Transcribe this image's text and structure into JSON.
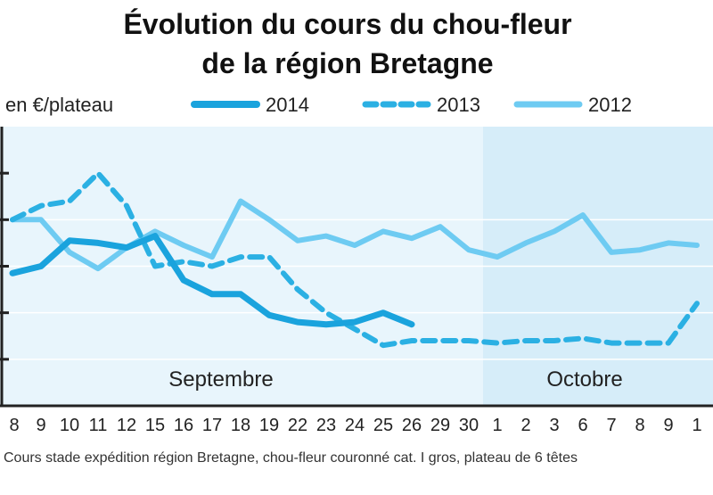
{
  "chart_data": {
    "type": "line",
    "title_line1": "Évolution du cours du chou-fleur",
    "title_line2": "de la région Bretagne",
    "ylabel": "en €/plateau",
    "source": "Cours stade expédition région Bretagne, chou-fleur couronné cat. I gros, plateau de 6 têtes",
    "months": [
      "Septembre",
      "Octobre"
    ],
    "x_ticks": [
      "8",
      "9",
      "10",
      "11",
      "12",
      "15",
      "16",
      "17",
      "18",
      "19",
      "22",
      "23",
      "24",
      "25",
      "26",
      "29",
      "30",
      "1",
      "2",
      "3",
      "6",
      "7",
      "8",
      "9",
      "1"
    ],
    "ylim": [
      0,
      6
    ],
    "y_gridlines": [
      1,
      2,
      3,
      4
    ],
    "october_start_index": 17,
    "series": [
      {
        "name": "2014",
        "style": "solid-thick",
        "color": "#1aa3dd",
        "values": [
          2.85,
          3.0,
          3.55,
          3.5,
          3.4,
          3.65,
          2.7,
          2.4,
          2.4,
          1.95,
          1.8,
          1.75,
          1.8,
          2.0,
          1.75
        ]
      },
      {
        "name": "2013",
        "style": "dashed",
        "color": "#2bb0e3",
        "values": [
          4.0,
          4.3,
          4.4,
          5.0,
          4.3,
          3.0,
          3.1,
          3.0,
          3.2,
          3.2,
          2.5,
          2.0,
          1.65,
          1.3,
          1.4,
          1.4,
          1.4,
          1.35,
          1.4,
          1.4,
          1.45,
          1.35,
          1.35,
          1.35,
          2.2
        ]
      },
      {
        "name": "2012",
        "style": "solid-light",
        "color": "#6ecbf2",
        "values": [
          4.0,
          4.0,
          3.3,
          2.95,
          3.4,
          3.75,
          3.45,
          3.2,
          4.4,
          4.0,
          3.55,
          3.65,
          3.45,
          3.75,
          3.6,
          3.85,
          3.35,
          3.2,
          3.5,
          3.75,
          4.1,
          3.3,
          3.35,
          3.5,
          3.45
        ]
      }
    ]
  }
}
